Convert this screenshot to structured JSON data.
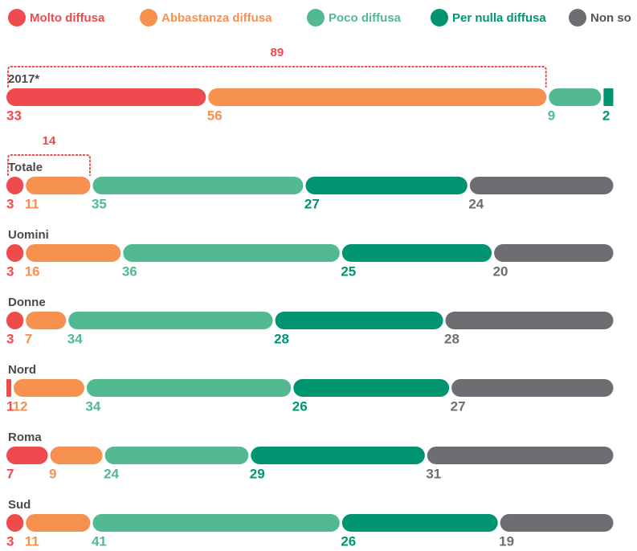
{
  "chart_data": {
    "type": "stacked-bar",
    "orientation": "horizontal",
    "categories": [
      "2017*",
      "Totale",
      "Uomini",
      "Donne",
      "Nord",
      "Roma",
      "Sud"
    ],
    "series": [
      {
        "name": "Molto diffusa",
        "color": "#ef4b4f",
        "values": [
          33,
          3,
          3,
          3,
          1,
          7,
          3
        ]
      },
      {
        "name": "Abbastanza diffusa",
        "color": "#f79150",
        "values": [
          56,
          11,
          16,
          7,
          12,
          9,
          11
        ]
      },
      {
        "name": "Poco diffusa",
        "color": "#52b991",
        "values": [
          9,
          35,
          36,
          34,
          34,
          24,
          41
        ]
      },
      {
        "name": "Per nulla diffusa",
        "color": "#009470",
        "values": [
          2,
          27,
          25,
          28,
          26,
          29,
          26
        ]
      },
      {
        "name": "Non so",
        "color": "#6d6e71",
        "values": [
          null,
          24,
          20,
          28,
          27,
          31,
          19
        ]
      }
    ],
    "xlim": [
      0,
      100
    ],
    "annotations": [
      {
        "category": "2017*",
        "value": 89
      },
      {
        "category": "Totale",
        "value": 14
      }
    ]
  }
}
